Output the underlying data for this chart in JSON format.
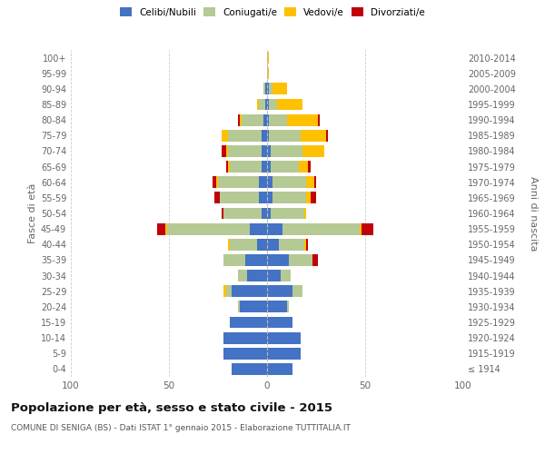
{
  "age_groups": [
    "100+",
    "95-99",
    "90-94",
    "85-89",
    "80-84",
    "75-79",
    "70-74",
    "65-69",
    "60-64",
    "55-59",
    "50-54",
    "45-49",
    "40-44",
    "35-39",
    "30-34",
    "25-29",
    "20-24",
    "15-19",
    "10-14",
    "5-9",
    "0-4"
  ],
  "birth_years": [
    "≤ 1914",
    "1915-1919",
    "1920-1924",
    "1925-1929",
    "1930-1934",
    "1935-1939",
    "1940-1944",
    "1945-1949",
    "1950-1954",
    "1955-1959",
    "1960-1964",
    "1965-1969",
    "1970-1974",
    "1975-1979",
    "1980-1984",
    "1985-1989",
    "1990-1994",
    "1995-1999",
    "2000-2004",
    "2005-2009",
    "2010-2014"
  ],
  "colors": {
    "celibi": "#4472c4",
    "coniugati": "#b5c994",
    "vedovi": "#ffc000",
    "divorziati": "#c0000b"
  },
  "males": {
    "celibi": [
      0,
      0,
      1,
      1,
      2,
      3,
      3,
      3,
      4,
      4,
      3,
      9,
      5,
      11,
      10,
      18,
      14,
      19,
      22,
      22,
      18
    ],
    "coniugati": [
      0,
      0,
      1,
      3,
      11,
      17,
      17,
      16,
      21,
      20,
      19,
      42,
      14,
      11,
      5,
      3,
      1,
      0,
      0,
      0,
      0
    ],
    "vedovi": [
      0,
      0,
      0,
      1,
      1,
      3,
      1,
      1,
      1,
      0,
      0,
      1,
      1,
      0,
      0,
      1,
      0,
      0,
      0,
      0,
      0
    ],
    "divorziati": [
      0,
      0,
      0,
      0,
      1,
      0,
      2,
      1,
      2,
      3,
      1,
      4,
      0,
      0,
      0,
      0,
      0,
      0,
      0,
      0,
      0
    ]
  },
  "females": {
    "celibi": [
      0,
      0,
      1,
      1,
      1,
      1,
      2,
      2,
      3,
      3,
      2,
      8,
      6,
      11,
      7,
      13,
      10,
      13,
      17,
      17,
      13
    ],
    "coniugati": [
      0,
      0,
      2,
      4,
      9,
      16,
      16,
      14,
      17,
      17,
      17,
      39,
      13,
      12,
      5,
      5,
      1,
      0,
      0,
      0,
      0
    ],
    "vedovi": [
      1,
      1,
      7,
      13,
      16,
      13,
      11,
      5,
      4,
      2,
      1,
      1,
      1,
      0,
      0,
      0,
      0,
      0,
      0,
      0,
      0
    ],
    "divorziati": [
      0,
      0,
      0,
      0,
      1,
      1,
      0,
      1,
      1,
      3,
      0,
      6,
      1,
      3,
      0,
      0,
      0,
      0,
      0,
      0,
      0
    ]
  },
  "xlim": 100,
  "title": "Popolazione per età, sesso e stato civile - 2015",
  "subtitle": "COMUNE DI SENIGA (BS) - Dati ISTAT 1° gennaio 2015 - Elaborazione TUTTITALIA.IT",
  "ylabel_left": "Fasce di età",
  "ylabel_right": "Anni di nascita",
  "legend_labels": [
    "Celibi/Nubili",
    "Coniugati/e",
    "Vedovi/e",
    "Divorziati/e"
  ],
  "background_color": "#ffffff",
  "grid_color": "#cccccc"
}
